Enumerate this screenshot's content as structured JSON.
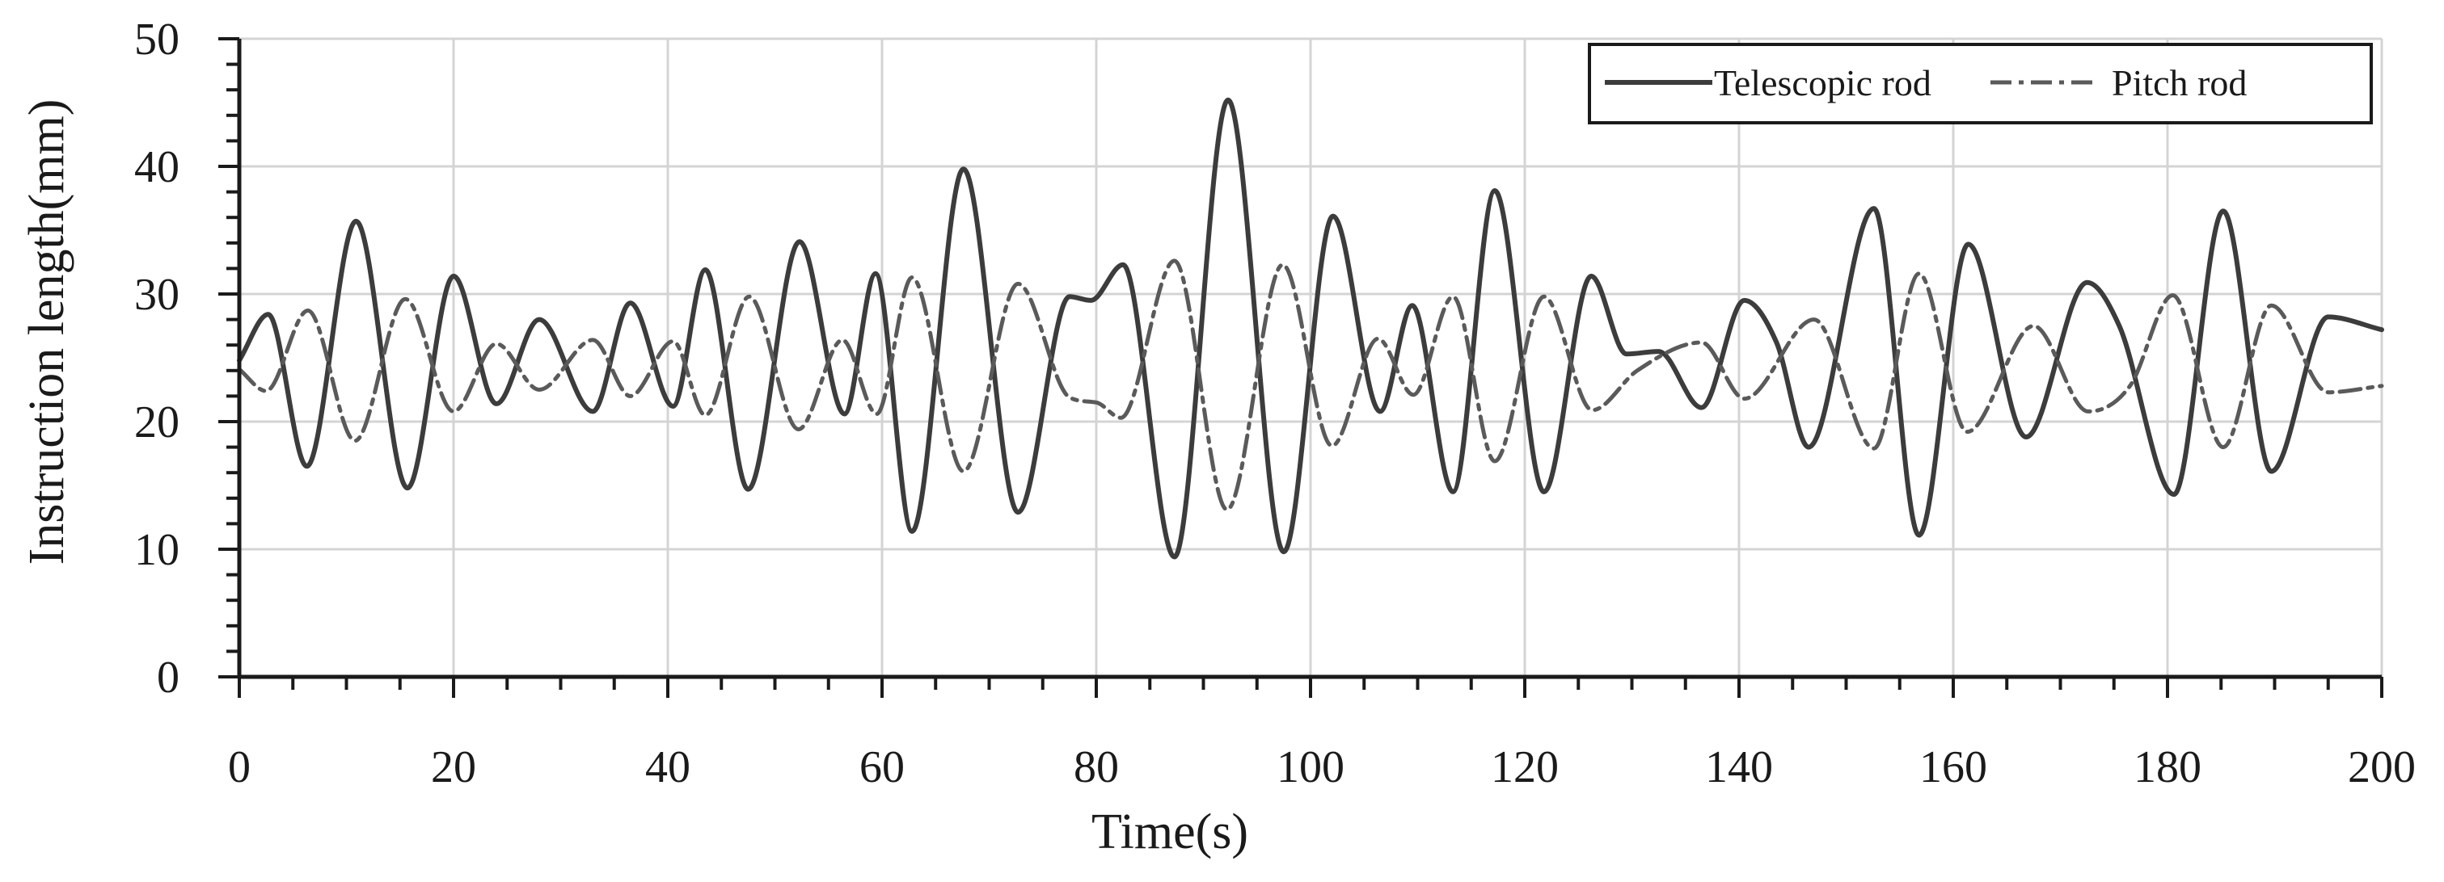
{
  "chart_data": {
    "type": "line",
    "title": "",
    "xlabel": "Time(s)",
    "ylabel": "Instruction length(mm)",
    "xlim": [
      0,
      200
    ],
    "ylim": [
      0,
      50
    ],
    "xticks": [
      0,
      20,
      40,
      60,
      80,
      100,
      120,
      140,
      160,
      180,
      200
    ],
    "xtick_labels": [
      "0",
      "20",
      "40",
      "60",
      "80",
      "100",
      "120",
      "140",
      "160",
      "180",
      "200"
    ],
    "yticks": [
      0,
      10,
      20,
      30,
      40,
      50
    ],
    "ytick_labels": [
      "0",
      "10",
      "20",
      "30",
      "40",
      "50"
    ],
    "grid": true,
    "legend_position": "top-right",
    "series": [
      {
        "name": "Telescopic rod",
        "color": "#3c3c3c",
        "dash": "solid",
        "x": [
          0,
          2.7,
          6.3,
          10.9,
          15.7,
          20,
          24,
          28,
          33,
          36.5,
          40.5,
          43.5,
          47.5,
          52.3,
          56.5,
          59.4,
          62.8,
          67.6,
          72.7,
          77.5,
          79.5,
          82.5,
          87.3,
          92.3,
          97.5,
          102.1,
          106.5,
          109.5,
          113.3,
          117.2,
          121.8,
          126.2,
          129.5,
          132.5,
          136.5,
          140.5,
          143.5,
          146.5,
          152.6,
          156.8,
          161.4,
          166.8,
          172.5,
          175.5,
          180.6,
          185.2,
          189.7,
          195,
          200
        ],
        "y": [
          24.8,
          28.4,
          16.5,
          35.7,
          14.8,
          31.4,
          21.4,
          28,
          20.8,
          29.3,
          21.2,
          31.9,
          14.7,
          34.1,
          20.6,
          31.6,
          11.4,
          39.8,
          12.9,
          29.8,
          29.5,
          32.3,
          9.4,
          45.2,
          9.8,
          36.1,
          20.8,
          29.1,
          14.5,
          38.1,
          14.5,
          31.4,
          25.3,
          25.5,
          21.1,
          29.5,
          26.2,
          18,
          36.7,
          11.1,
          33.9,
          18.8,
          30.9,
          27.5,
          14.3,
          36.5,
          16.1,
          28.2,
          27.2
        ]
      },
      {
        "name": "Pitch rod",
        "color": "#5a5a5a",
        "dash": "dash-dot",
        "x": [
          0,
          2.5,
          6.4,
          10.8,
          15.5,
          20,
          24,
          28,
          33,
          36.5,
          40.5,
          43.5,
          47.6,
          52.2,
          56.3,
          59.5,
          62.8,
          67.6,
          72.7,
          77.5,
          80,
          82.3,
          87.3,
          92.2,
          97.4,
          102,
          106.3,
          109.6,
          113.3,
          117.2,
          121.8,
          126.3,
          130.5,
          136.5,
          140.5,
          147,
          152.6,
          156.8,
          161.3,
          167.5,
          172.6,
          176.5,
          180.5,
          185.2,
          189.7,
          195,
          200
        ],
        "y": [
          24.1,
          22.4,
          28.7,
          18.5,
          29.6,
          20.8,
          26.1,
          22.5,
          26.4,
          22,
          26.3,
          20.5,
          29.8,
          19.4,
          26.4,
          20.6,
          31.3,
          16.1,
          30.8,
          21.9,
          21.5,
          20.3,
          32.6,
          13.1,
          32.3,
          18.1,
          26.5,
          22.1,
          29.8,
          16.9,
          29.8,
          20.9,
          24,
          26.2,
          21.8,
          28,
          17.9,
          31.6,
          19.2,
          27.5,
          20.8,
          22.8,
          29.9,
          18,
          29.1,
          22.3,
          22.8
        ]
      }
    ]
  }
}
